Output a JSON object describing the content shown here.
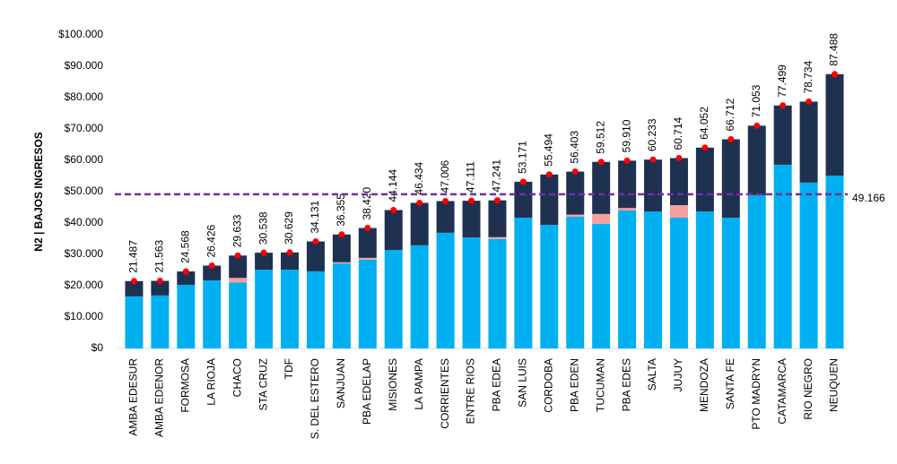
{
  "chart_data": {
    "type": "stacked_bar",
    "y_label": "N2 | BAJOS INGRESOS",
    "categories": [
      "AMBA EDESUR",
      "AMBA EDENOR",
      "FORMOSA",
      "LA RIOJA",
      "CHACO",
      "STA CRUZ",
      "TDF",
      "S. DEL ESTERO",
      "SANJUAN",
      "PBA EDELAP",
      "MISIONES",
      "LA PAMPA",
      "CORRIENTES",
      "ENTRE RIOS",
      "PBA EDEA",
      "SAN LUIS",
      "CORDOBA",
      "PBA EDEN",
      "TUCUMAN",
      "PBA EDES",
      "SALTA",
      "JUJUY",
      "MENDOZA",
      "SANTA FE",
      "PTO MADRYN",
      "CATAMARCA",
      "RIO NEGRO",
      "NEUQUEN"
    ],
    "series": [
      {
        "color": "#00b0f0",
        "values": [
          16600,
          16900,
          20300,
          21700,
          21000,
          25100,
          25100,
          24600,
          27100,
          28300,
          31400,
          32900,
          36900,
          35400,
          34900,
          41700,
          39400,
          42000,
          39700,
          44000,
          43700,
          41700,
          43700,
          41700,
          48900,
          58600,
          52900,
          55100
        ]
      },
      {
        "color": "#f4a0a0",
        "values": [
          0,
          0,
          0,
          0,
          1500,
          0,
          0,
          0,
          400,
          600,
          0,
          0,
          0,
          0,
          600,
          0,
          0,
          700,
          3200,
          800,
          0,
          4000,
          0,
          0,
          0,
          0,
          0,
          0
        ]
      },
      {
        "color": "#1f3150",
        "values": [
          4887,
          4663,
          4268,
          4726,
          7133,
          5438,
          5529,
          9531,
          8855,
          9520,
          12744,
          13534,
          10106,
          11711,
          11741,
          11471,
          16094,
          13703,
          16612,
          15110,
          16533,
          15014,
          20352,
          25012,
          22153,
          18899,
          25834,
          32388
        ]
      }
    ],
    "totals": {
      "color": "#ff0000",
      "values": [
        21487,
        21563,
        24568,
        26426,
        29633,
        30538,
        30629,
        34131,
        36355,
        38420,
        44144,
        46434,
        47006,
        47111,
        47241,
        53171,
        55494,
        56403,
        59512,
        59910,
        60233,
        60714,
        64052,
        66712,
        71053,
        77499,
        78734,
        87488
      ],
      "value_labels": [
        "21.487",
        "21.563",
        "24.568",
        "26.426",
        "29.633",
        "30.538",
        "30.629",
        "34.131",
        "36.355",
        "38.420",
        "44.144",
        "46.434",
        "47.006",
        "47.111",
        "47.241",
        "53.171",
        "55.494",
        "56.403",
        "59.512",
        "59.910",
        "60.233",
        "60.714",
        "64.052",
        "66.712",
        "71.053",
        "77.499",
        "78.734",
        "87.488"
      ]
    },
    "reference_line": {
      "value": 49166,
      "label": "49.166",
      "color": "#7030a0"
    },
    "ylim": [
      0,
      100000
    ],
    "yticks": [
      {
        "value": 0,
        "label": "$0"
      },
      {
        "value": 10000,
        "label": "$10.000"
      },
      {
        "value": 20000,
        "label": "$20.000"
      },
      {
        "value": 30000,
        "label": "$30.000"
      },
      {
        "value": 40000,
        "label": "$40.000"
      },
      {
        "value": 50000,
        "label": "$50.000"
      },
      {
        "value": 60000,
        "label": "$60.000"
      },
      {
        "value": 70000,
        "label": "$70.000"
      },
      {
        "value": 80000,
        "label": "$80.000"
      },
      {
        "value": 90000,
        "label": "$90.000"
      },
      {
        "value": 100000,
        "label": "$100.000"
      }
    ]
  }
}
